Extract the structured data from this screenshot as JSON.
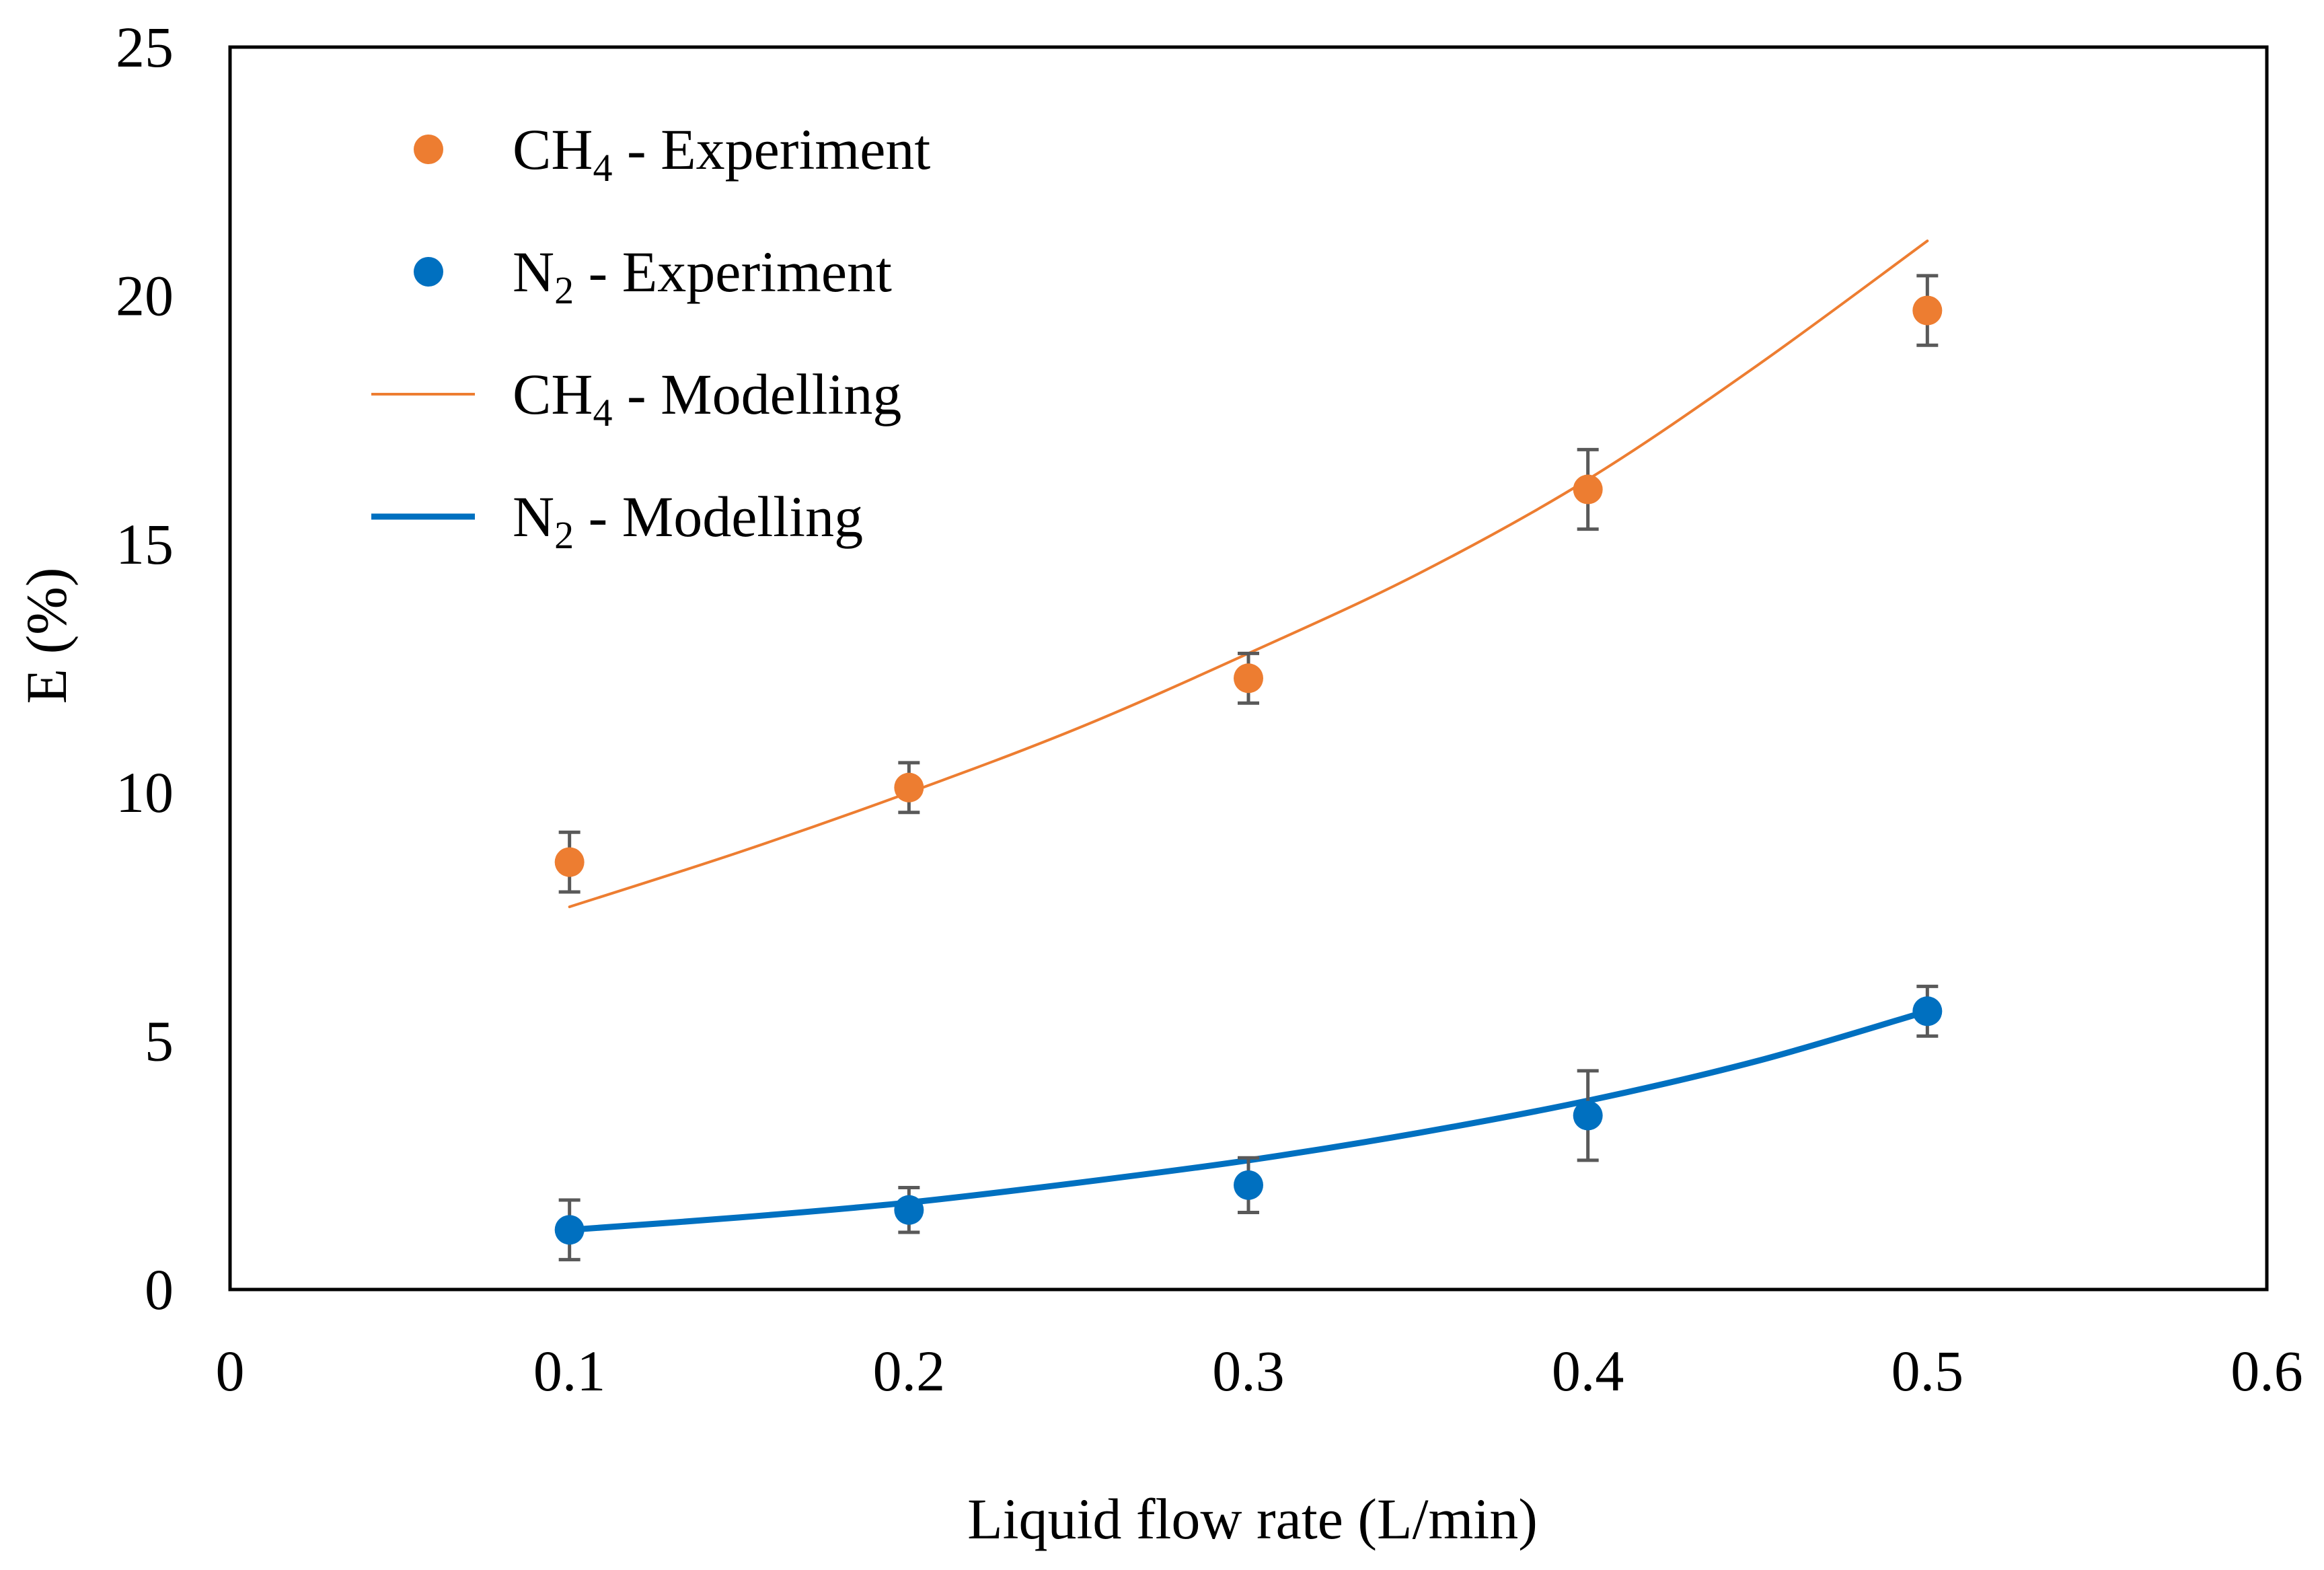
{
  "chart_data": {
    "type": "scatter",
    "xlabel": "Liquid flow rate (L/min)",
    "ylabel": "E (%)",
    "xlim": [
      0,
      0.6
    ],
    "ylim": [
      0,
      25
    ],
    "grid": false,
    "legend_position": "top-left",
    "x_ticks": [
      0,
      0.1,
      0.2,
      0.3,
      0.4,
      0.5,
      0.6
    ],
    "x_tick_labels": [
      "0",
      "0.1",
      "0.2",
      "0.3",
      "0.4",
      "0.5",
      "0.6"
    ],
    "y_ticks": [
      0,
      5,
      10,
      15,
      20,
      25
    ],
    "y_tick_labels": [
      "0",
      "5",
      "10",
      "15",
      "20",
      "25"
    ],
    "series": [
      {
        "name": "CH4 - Experiment",
        "legend_label": {
          "main": "CH",
          "sub": "4",
          "suffix": " - Experiment"
        },
        "kind": "points",
        "color": "#ED7D31",
        "x": [
          0.1,
          0.2,
          0.3,
          0.4,
          0.5
        ],
        "y": [
          8.6,
          10.1,
          12.3,
          16.1,
          19.7
        ],
        "error": [
          0.6,
          0.5,
          0.5,
          0.8,
          0.7
        ]
      },
      {
        "name": "N2 - Experiment",
        "legend_label": {
          "main": "N",
          "sub": "2",
          "suffix": " - Experiment"
        },
        "kind": "points",
        "color": "#0070C0",
        "x": [
          0.1,
          0.2,
          0.3,
          0.4,
          0.5
        ],
        "y": [
          1.2,
          1.6,
          2.1,
          3.5,
          5.6
        ],
        "error": [
          0.6,
          0.45,
          0.55,
          0.9,
          0.5
        ]
      },
      {
        "name": "CH4 - Modelling",
        "legend_label": {
          "main": "CH",
          "sub": "4",
          "suffix": " - Modelling"
        },
        "kind": "line",
        "stroke": "thin",
        "color": "#ED7D31",
        "x": [
          0.1,
          0.15,
          0.2,
          0.25,
          0.3,
          0.35,
          0.4,
          0.45,
          0.5
        ],
        "y": [
          7.7,
          8.8,
          10.0,
          11.3,
          12.8,
          14.4,
          16.3,
          18.6,
          21.1
        ]
      },
      {
        "name": "N2 - Modelling",
        "legend_label": {
          "main": "N",
          "sub": "2",
          "suffix": " - Modelling"
        },
        "kind": "line",
        "stroke": "thick",
        "color": "#0070C0",
        "x": [
          0.1,
          0.15,
          0.2,
          0.25,
          0.3,
          0.35,
          0.4,
          0.45,
          0.5
        ],
        "y": [
          1.2,
          1.45,
          1.75,
          2.15,
          2.6,
          3.15,
          3.8,
          4.6,
          5.6
        ]
      }
    ]
  }
}
